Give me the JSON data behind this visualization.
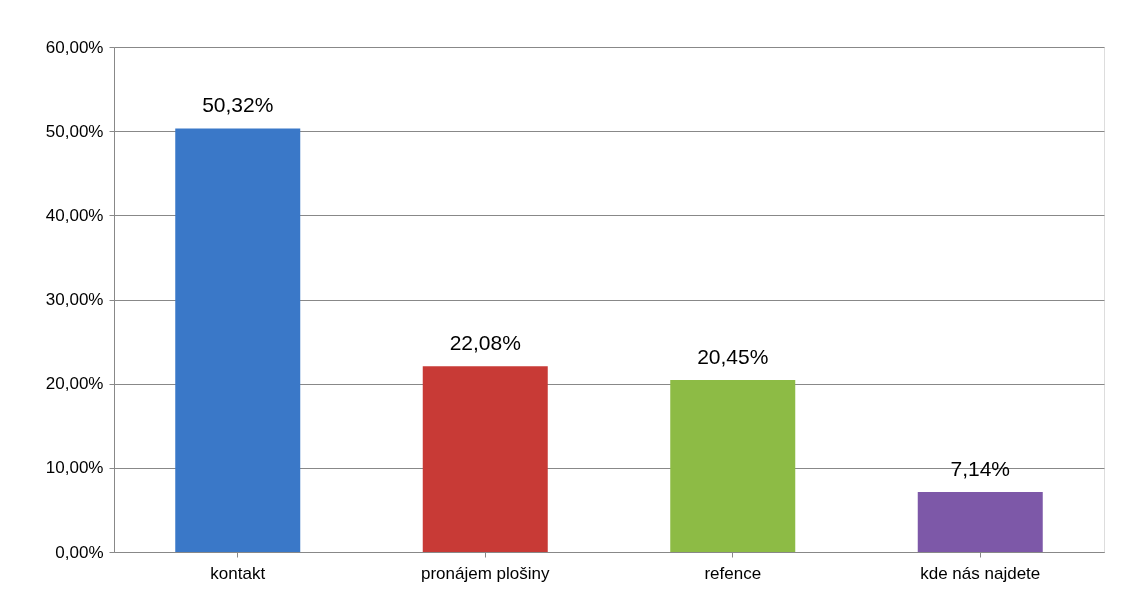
{
  "chart_data": {
    "type": "bar",
    "categories": [
      "kontakt",
      "pronájem plošiny",
      "refence",
      "kde nás najdete"
    ],
    "values": [
      50.32,
      22.08,
      20.45,
      7.14
    ],
    "colors": [
      "#3a78c8",
      "#c83a36",
      "#8dbb45",
      "#7d58a8"
    ],
    "value_labels": [
      "50,32%",
      "22,08%",
      "20,45%",
      "7,14%"
    ],
    "ylim": [
      0,
      60
    ],
    "yticks": [
      {
        "value": 0,
        "label": "0,00%"
      },
      {
        "value": 10,
        "label": "10,00%"
      },
      {
        "value": 20,
        "label": "20,00%"
      },
      {
        "value": 30,
        "label": "30,00%"
      },
      {
        "value": 40,
        "label": "40,00%"
      },
      {
        "value": 50,
        "label": "50,00%"
      },
      {
        "value": 60,
        "label": "60,00%"
      }
    ],
    "grid": "y"
  }
}
